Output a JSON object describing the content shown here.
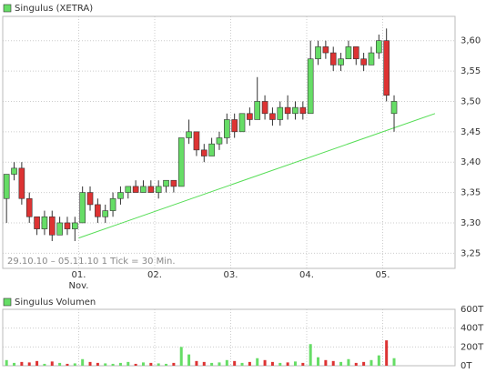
{
  "chart_data": [
    {
      "type": "candlestick",
      "title": "Singulus (XETRA)",
      "subtitle": "29.10.10 – 05.11.10   1 Tick = 30 Min.",
      "day_labels": [
        "01.",
        "02.",
        "03.",
        "04.",
        "05."
      ],
      "month_label": "Nov.",
      "open": [
        3.34,
        3.38,
        3.39,
        3.34,
        3.31,
        3.29,
        3.31,
        3.28,
        3.3,
        3.29,
        3.3,
        3.35,
        3.33,
        3.31,
        3.32,
        3.34,
        3.35,
        3.36,
        3.35,
        3.36,
        3.35,
        3.36,
        3.37,
        3.36,
        3.44,
        3.45,
        3.42,
        3.41,
        3.43,
        3.44,
        3.47,
        3.45,
        3.48,
        3.47,
        3.5,
        3.48,
        3.47,
        3.49,
        3.48,
        3.49,
        3.48,
        3.57,
        3.59,
        3.58,
        3.56,
        3.57,
        3.59,
        3.57,
        3.56,
        3.58,
        3.6,
        3.48
      ],
      "high": [
        3.38,
        3.4,
        3.4,
        3.35,
        3.31,
        3.32,
        3.32,
        3.31,
        3.31,
        3.31,
        3.36,
        3.36,
        3.34,
        3.33,
        3.35,
        3.36,
        3.36,
        3.37,
        3.37,
        3.37,
        3.37,
        3.37,
        3.37,
        3.44,
        3.47,
        3.45,
        3.43,
        3.44,
        3.45,
        3.48,
        3.48,
        3.48,
        3.49,
        3.54,
        3.51,
        3.49,
        3.5,
        3.51,
        3.5,
        3.5,
        3.6,
        3.6,
        3.6,
        3.59,
        3.58,
        3.6,
        3.59,
        3.58,
        3.59,
        3.61,
        3.62,
        3.51
      ],
      "low": [
        3.3,
        3.37,
        3.33,
        3.3,
        3.28,
        3.28,
        3.27,
        3.28,
        3.28,
        3.27,
        3.3,
        3.32,
        3.3,
        3.3,
        3.31,
        3.33,
        3.34,
        3.35,
        3.35,
        3.35,
        3.34,
        3.35,
        3.35,
        3.36,
        3.43,
        3.41,
        3.4,
        3.41,
        3.42,
        3.43,
        3.44,
        3.45,
        3.46,
        3.47,
        3.47,
        3.46,
        3.46,
        3.47,
        3.47,
        3.47,
        3.48,
        3.56,
        3.57,
        3.55,
        3.55,
        3.57,
        3.56,
        3.55,
        3.56,
        3.57,
        3.5,
        3.45
      ],
      "close": [
        3.38,
        3.39,
        3.34,
        3.31,
        3.29,
        3.31,
        3.28,
        3.3,
        3.29,
        3.3,
        3.35,
        3.33,
        3.31,
        3.32,
        3.34,
        3.35,
        3.36,
        3.35,
        3.36,
        3.35,
        3.36,
        3.37,
        3.36,
        3.44,
        3.45,
        3.42,
        3.41,
        3.43,
        3.44,
        3.47,
        3.45,
        3.48,
        3.47,
        3.5,
        3.48,
        3.47,
        3.49,
        3.48,
        3.49,
        3.48,
        3.57,
        3.59,
        3.58,
        3.56,
        3.57,
        3.59,
        3.57,
        3.56,
        3.58,
        3.6,
        3.51,
        3.5
      ],
      "up_color": "#66dd66",
      "down_color": "#dd3333",
      "trend_line": {
        "values": [
          3.275,
          3.48
        ],
        "color": "#55dd55"
      },
      "ylim": [
        3.225,
        3.64
      ],
      "yticks": [
        {
          "value": 3.25,
          "label": "3,25"
        },
        {
          "value": 3.3,
          "label": "3,30"
        },
        {
          "value": 3.35,
          "label": "3,35"
        },
        {
          "value": 3.4,
          "label": "3,40"
        },
        {
          "value": 3.45,
          "label": "3,45"
        },
        {
          "value": 3.5,
          "label": "3,50"
        },
        {
          "value": 3.55,
          "label": "3,55"
        },
        {
          "value": 3.6,
          "label": "3,60"
        }
      ],
      "grid": true
    },
    {
      "type": "volume",
      "title": "Singulus Volumen",
      "values": [
        60,
        30,
        40,
        35,
        50,
        20,
        45,
        30,
        20,
        25,
        70,
        40,
        30,
        25,
        20,
        30,
        40,
        20,
        35,
        30,
        25,
        20,
        30,
        200,
        120,
        50,
        40,
        30,
        35,
        60,
        50,
        30,
        40,
        80,
        60,
        40,
        30,
        35,
        45,
        30,
        230,
        90,
        60,
        50,
        40,
        70,
        30,
        40,
        60,
        110,
        270,
        80
      ],
      "ylim": [
        0,
        600
      ],
      "yticks": [
        {
          "value": 0,
          "label": "0T"
        },
        {
          "value": 200,
          "label": "200T"
        },
        {
          "value": 400,
          "label": "400T"
        },
        {
          "value": 600,
          "label": "600T"
        }
      ],
      "grid": true
    }
  ]
}
